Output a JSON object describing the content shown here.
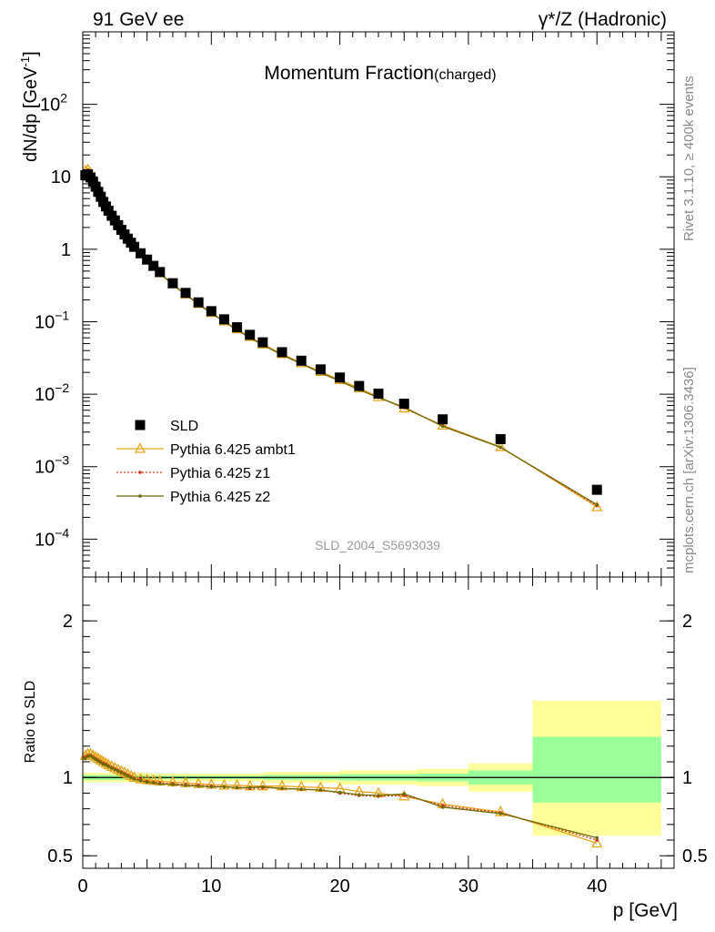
{
  "header": {
    "left": "91 GeV ee",
    "right": "γ*/Z (Hadronic)"
  },
  "side_labels": {
    "rivet": "Rivet 3.1.10, ≥ 400k events",
    "mcplots": "mcplots.cern.ch [arXiv:1306.3436]"
  },
  "chart_data": [
    {
      "type": "scatter",
      "title": "Momentum Fraction",
      "title_suffix": "(charged)",
      "watermark": "SLD_2004_S5693039",
      "ylabel": "dN/dp [GeV",
      "ylabel_sup": "-1",
      "ylabel_close": "]",
      "yscale": "log",
      "xlim": [
        0,
        46
      ],
      "ylim": [
        3e-05,
        1000
      ],
      "yticks": [
        {
          "value": 0.0001,
          "mant": "10",
          "exp": "−4"
        },
        {
          "value": 0.001,
          "mant": "10",
          "exp": "−3"
        },
        {
          "value": 0.01,
          "mant": "10",
          "exp": "−2"
        },
        {
          "value": 0.1,
          "mant": "10",
          "exp": "−1"
        },
        {
          "value": 1,
          "mant": "1",
          "exp": ""
        },
        {
          "value": 10,
          "mant": "10",
          "exp": ""
        },
        {
          "value": 100,
          "mant": "10",
          "exp": "2"
        }
      ],
      "legend": [
        {
          "label": "SLD",
          "color": "#000000",
          "marker": "square",
          "line": "none"
        },
        {
          "label": "Pythia 6.425 ambt1",
          "color": "#e8a317",
          "marker": "triangle",
          "line": "solid"
        },
        {
          "label": "Pythia 6.425 z1",
          "color": "#e03020",
          "marker": "dot",
          "line": "dotted"
        },
        {
          "label": "Pythia 6.425 z2",
          "color": "#6b6b00",
          "marker": "dot",
          "line": "solid"
        }
      ],
      "x": [
        0.2,
        0.4,
        0.6,
        0.8,
        1.0,
        1.2,
        1.4,
        1.6,
        1.8,
        2.0,
        2.25,
        2.5,
        2.75,
        3.0,
        3.25,
        3.5,
        3.75,
        4.0,
        4.5,
        5.0,
        5.5,
        6.0,
        7.0,
        8.0,
        9.0,
        10.0,
        11.0,
        12.0,
        13.0,
        14.0,
        15.5,
        17.0,
        18.5,
        20.0,
        21.5,
        23.0,
        25.0,
        28.0,
        32.5,
        40.0
      ],
      "series": [
        {
          "name": "SLD",
          "values": [
            10.5,
            10.8,
            9.8,
            8.5,
            7.3,
            6.2,
            5.3,
            4.5,
            3.9,
            3.4,
            2.9,
            2.5,
            2.15,
            1.85,
            1.6,
            1.4,
            1.23,
            1.08,
            0.88,
            0.72,
            0.59,
            0.485,
            0.34,
            0.25,
            0.185,
            0.14,
            0.108,
            0.084,
            0.066,
            0.052,
            0.038,
            0.029,
            0.022,
            0.017,
            0.013,
            0.0102,
            0.0074,
            0.0045,
            0.0024,
            0.00048
          ]
        },
        {
          "name": "Pythia 6.425 ambt1",
          "values": [
            12.0,
            12.5,
            11.3,
            9.7,
            8.3,
            7.0,
            5.9,
            5.0,
            4.3,
            3.7,
            3.1,
            2.65,
            2.25,
            1.93,
            1.65,
            1.42,
            1.24,
            1.08,
            0.87,
            0.71,
            0.58,
            0.47,
            0.33,
            0.24,
            0.177,
            0.133,
            0.102,
            0.079,
            0.062,
            0.049,
            0.036,
            0.027,
            0.0205,
            0.0158,
            0.0121,
            0.0092,
            0.0064,
            0.0037,
            0.00188,
            0.000278
          ]
        },
        {
          "name": "Pythia 6.425 z1",
          "values": [
            11.9,
            12.4,
            11.2,
            9.6,
            8.2,
            6.9,
            5.85,
            4.95,
            4.25,
            3.65,
            3.07,
            2.62,
            2.23,
            1.91,
            1.64,
            1.41,
            1.23,
            1.07,
            0.86,
            0.7,
            0.575,
            0.465,
            0.327,
            0.238,
            0.175,
            0.132,
            0.1,
            0.077,
            0.06,
            0.048,
            0.035,
            0.0265,
            0.0199,
            0.0152,
            0.0116,
            0.009,
            0.0065,
            0.00368,
            0.00185,
            0.00029
          ]
        },
        {
          "name": "Pythia 6.425 z2",
          "values": [
            11.85,
            12.35,
            11.15,
            9.55,
            8.15,
            6.88,
            5.83,
            4.93,
            4.23,
            3.64,
            3.06,
            2.61,
            2.22,
            1.9,
            1.63,
            1.4,
            1.22,
            1.06,
            0.857,
            0.698,
            0.572,
            0.463,
            0.326,
            0.237,
            0.174,
            0.131,
            0.1,
            0.077,
            0.06,
            0.048,
            0.0348,
            0.0263,
            0.0198,
            0.0152,
            0.0115,
            0.009,
            0.0066,
            0.0036,
            0.00185,
            0.0003
          ]
        }
      ]
    },
    {
      "type": "line",
      "ylabel": "Ratio to SLD",
      "xlabel": "p [GeV]",
      "xlim": [
        0,
        46
      ],
      "ylim": [
        0.42,
        2.28
      ],
      "xticks": [
        0,
        10,
        20,
        30,
        40
      ],
      "yticks": [
        0.5,
        1,
        2
      ],
      "yellow_band_color": "#ffff99",
      "green_band_color": "#99ff99",
      "uncertainty_bands": [
        {
          "x0": 0,
          "x1": 5,
          "yellow": [
            0.97,
            1.03
          ],
          "green": [
            0.985,
            1.015
          ]
        },
        {
          "x0": 5,
          "x1": 14,
          "yellow": [
            0.975,
            1.025
          ],
          "green": [
            0.99,
            1.01
          ]
        },
        {
          "x0": 14,
          "x1": 20,
          "yellow": [
            0.965,
            1.035
          ],
          "green": [
            0.985,
            1.015
          ]
        },
        {
          "x0": 20,
          "x1": 26,
          "yellow": [
            0.955,
            1.045
          ],
          "green": [
            0.98,
            1.02
          ]
        },
        {
          "x0": 26,
          "x1": 30,
          "yellow": [
            0.945,
            1.055
          ],
          "green": [
            0.975,
            1.025
          ]
        },
        {
          "x0": 30,
          "x1": 35,
          "yellow": [
            0.91,
            1.09
          ],
          "green": [
            0.955,
            1.045
          ]
        },
        {
          "x0": 35,
          "x1": 45,
          "yellow": [
            0.63,
            1.49
          ],
          "green": [
            0.84,
            1.26
          ]
        }
      ],
      "x": [
        0.2,
        0.4,
        0.6,
        0.8,
        1.0,
        1.2,
        1.4,
        1.6,
        1.8,
        2.0,
        2.25,
        2.5,
        2.75,
        3.0,
        3.25,
        3.5,
        3.75,
        4.0,
        4.5,
        5.0,
        5.5,
        6.0,
        7.0,
        8.0,
        9.0,
        10.0,
        11.0,
        12.0,
        13.0,
        14.0,
        15.5,
        17.0,
        18.5,
        20.0,
        21.5,
        23.0,
        25.0,
        28.0,
        32.5,
        40.0
      ],
      "series": [
        {
          "name": "Pythia 6.425 ambt1",
          "values": [
            1.14,
            1.15,
            1.15,
            1.14,
            1.13,
            1.12,
            1.11,
            1.1,
            1.09,
            1.08,
            1.07,
            1.06,
            1.05,
            1.04,
            1.03,
            1.02,
            1.01,
            1.0,
            0.99,
            0.985,
            0.98,
            0.975,
            0.97,
            0.965,
            0.96,
            0.955,
            0.95,
            0.95,
            0.945,
            0.945,
            0.945,
            0.94,
            0.935,
            0.93,
            0.91,
            0.9,
            0.88,
            0.83,
            0.78,
            0.58
          ]
        },
        {
          "name": "Pythia 6.425 z1",
          "values": [
            1.13,
            1.14,
            1.14,
            1.13,
            1.12,
            1.11,
            1.1,
            1.09,
            1.085,
            1.075,
            1.065,
            1.055,
            1.045,
            1.035,
            1.025,
            1.015,
            1.005,
            0.995,
            0.985,
            0.975,
            0.97,
            0.965,
            0.96,
            0.955,
            0.95,
            0.945,
            0.94,
            0.935,
            0.93,
            0.935,
            0.93,
            0.925,
            0.92,
            0.9,
            0.885,
            0.88,
            0.885,
            0.82,
            0.775,
            0.6
          ]
        },
        {
          "name": "Pythia 6.425 z2",
          "values": [
            1.12,
            1.135,
            1.14,
            1.125,
            1.115,
            1.105,
            1.095,
            1.085,
            1.08,
            1.07,
            1.06,
            1.05,
            1.04,
            1.03,
            1.02,
            1.01,
            1.0,
            0.99,
            0.98,
            0.97,
            0.965,
            0.96,
            0.955,
            0.95,
            0.945,
            0.94,
            0.94,
            0.935,
            0.935,
            0.94,
            0.93,
            0.925,
            0.92,
            0.905,
            0.89,
            0.885,
            0.895,
            0.81,
            0.77,
            0.615
          ]
        }
      ]
    }
  ]
}
